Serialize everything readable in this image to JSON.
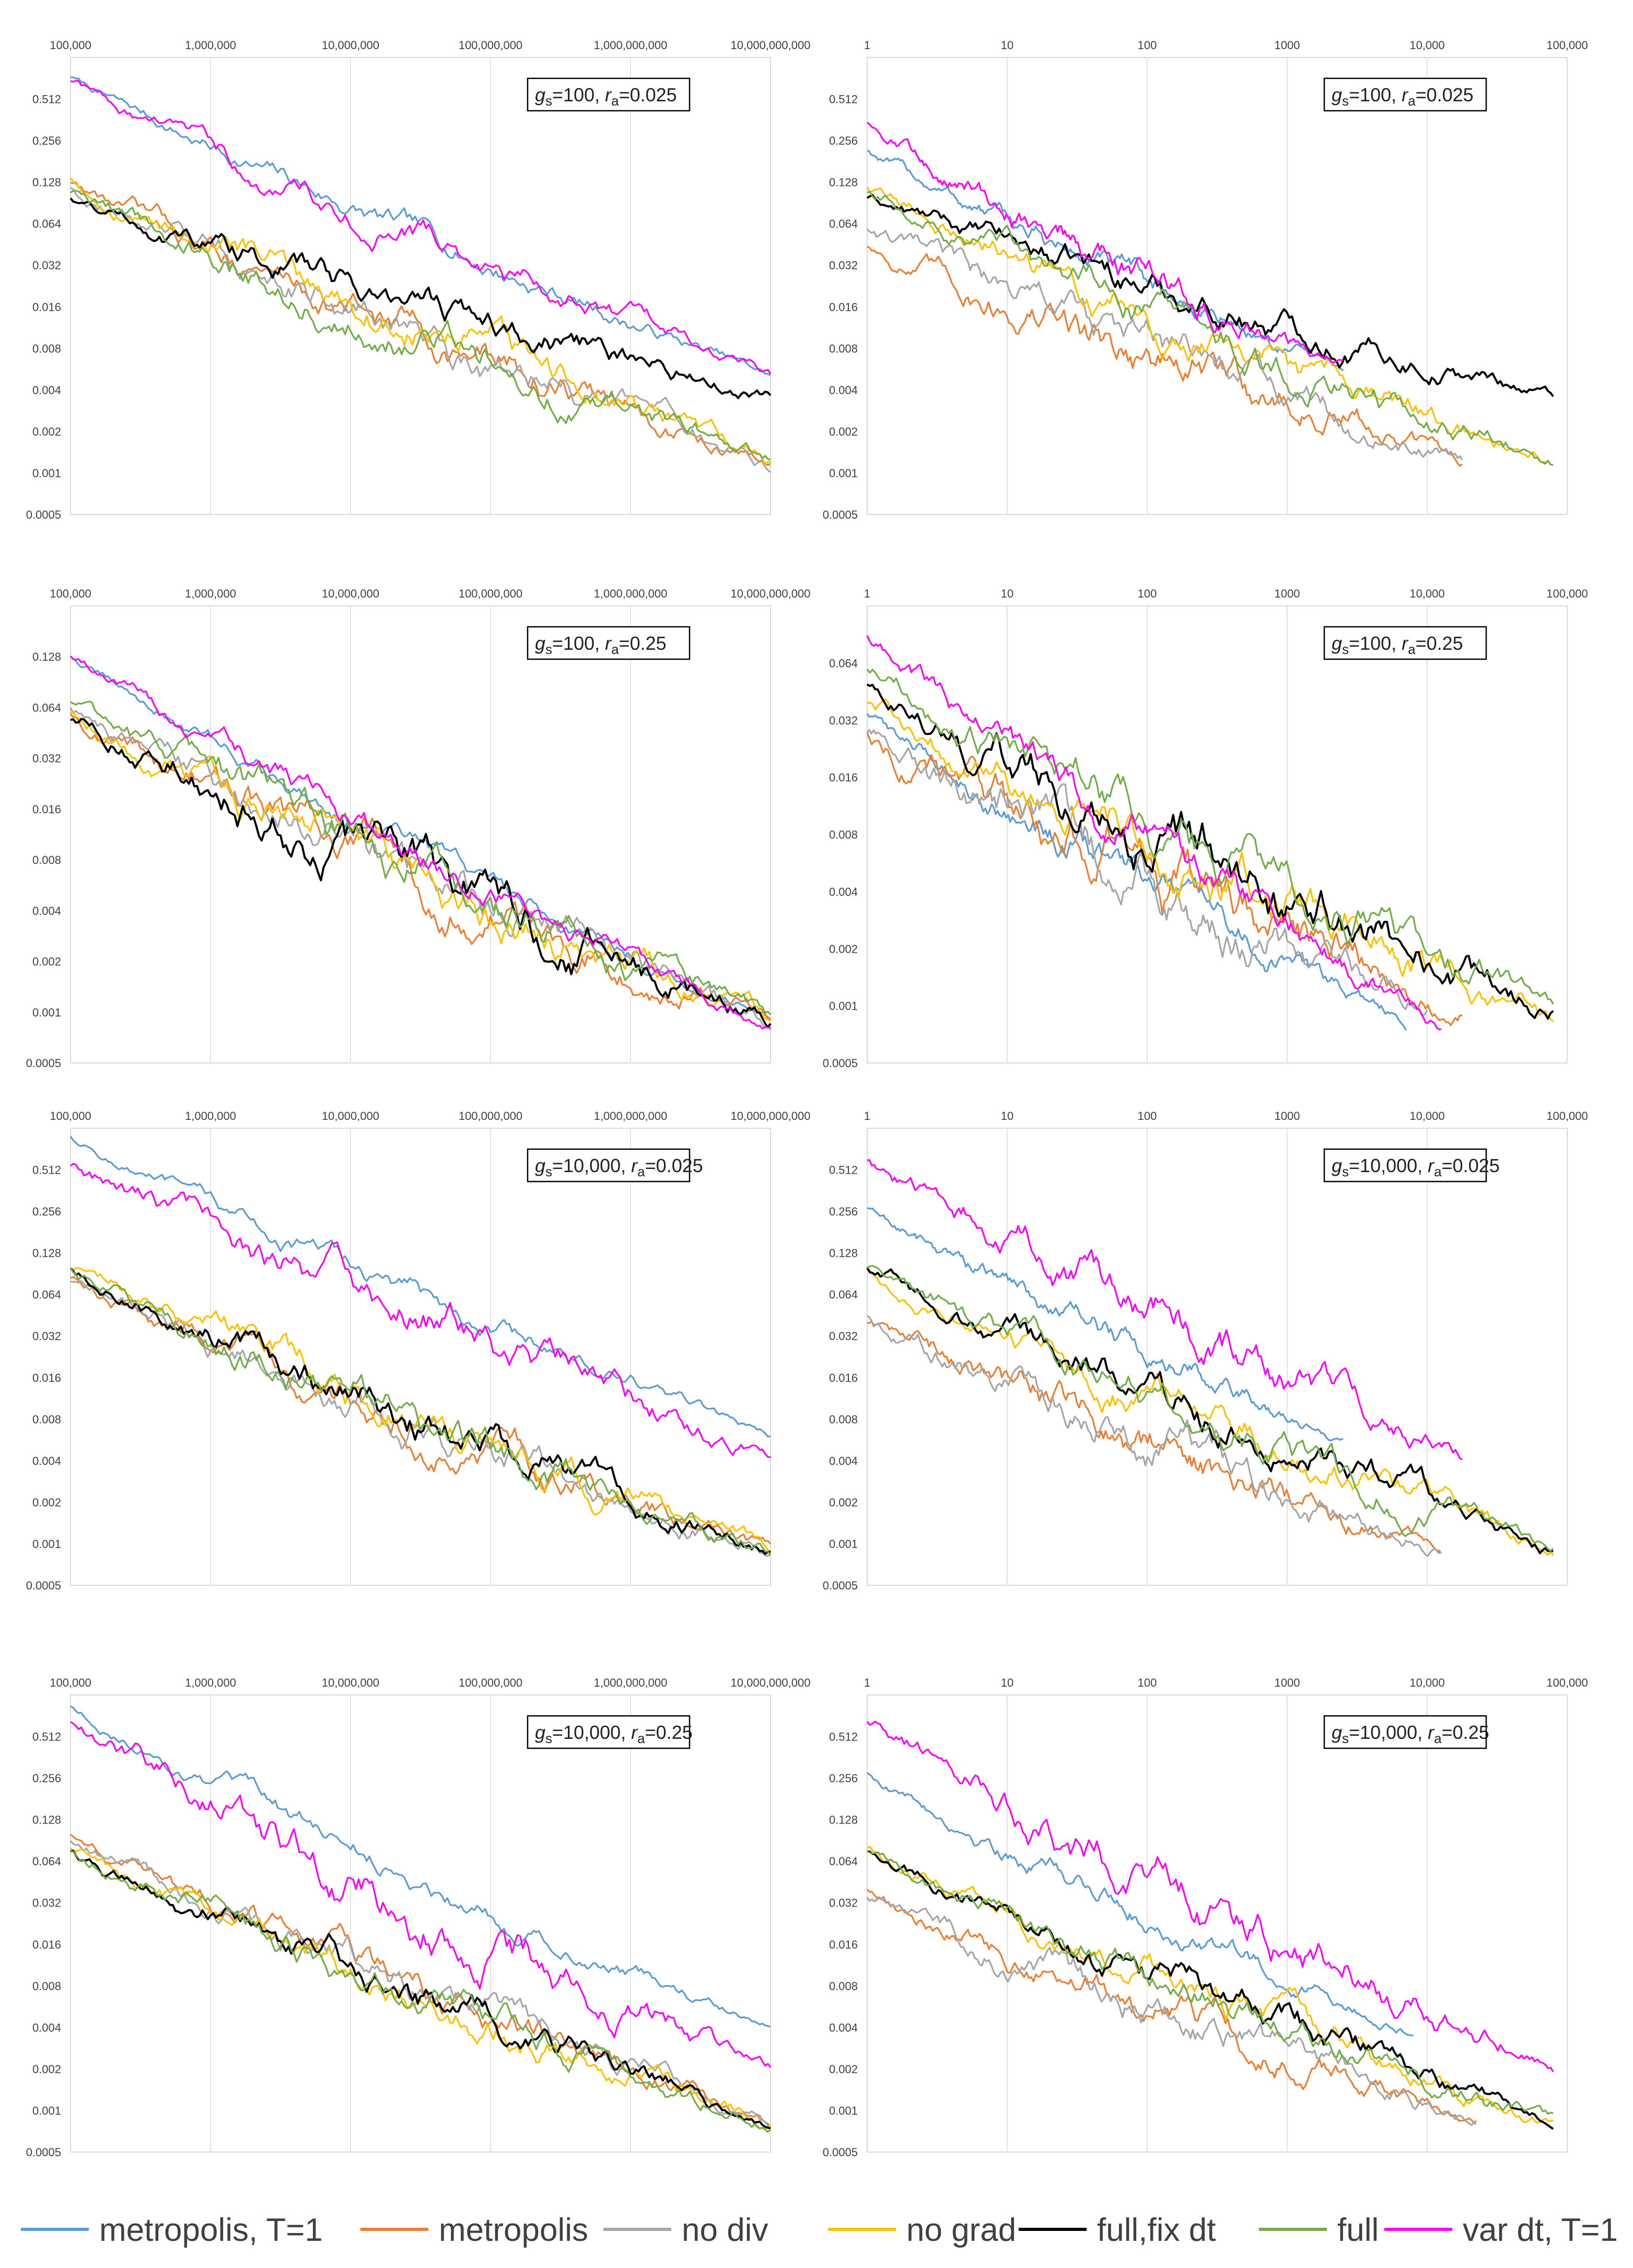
{
  "chart_data": [
    {
      "type": "line",
      "id": "p1",
      "label": {
        "g": "100",
        "r": "0.025"
      },
      "x_scale": "log",
      "x_ticks": [
        "100,000",
        "1,000,000",
        "10,000,000",
        "100,000,000",
        "1,000,000,000",
        "10,000,000,000"
      ],
      "y_scale": "log2",
      "y_ticks": [
        "0.512",
        "0.256",
        "0.128",
        "0.064",
        "0.032",
        "0.016",
        "0.008",
        "0.004",
        "0.002",
        "0.001",
        "0.0005"
      ],
      "ylim": [
        0.0005,
        1.024
      ],
      "series": [
        {
          "name": "metropolis, T=1",
          "start": 0.75,
          "end": 0.005,
          "span": 1.0,
          "noise": 0.05
        },
        {
          "name": "metropolis",
          "start": 0.13,
          "end": 0.00115,
          "span": 1.0,
          "noise": 0.08
        },
        {
          "name": "no div",
          "start": 0.12,
          "end": 0.0011,
          "span": 1.0,
          "noise": 0.08
        },
        {
          "name": "no grad",
          "start": 0.14,
          "end": 0.0012,
          "span": 1.0,
          "noise": 0.08
        },
        {
          "name": "full,fix dt",
          "start": 0.1,
          "end": 0.0037,
          "span": 1.0,
          "noise": 0.07,
          "floor": 0.004
        },
        {
          "name": "full",
          "start": 0.11,
          "end": 0.00125,
          "span": 1.0,
          "noise": 0.08
        },
        {
          "name": "var dt, T=1",
          "start": 0.7,
          "end": 0.005,
          "span": 1.0,
          "noise": 0.06
        }
      ]
    },
    {
      "type": "line",
      "id": "p2",
      "label": {
        "g": "100",
        "r": "0.025"
      },
      "x_scale": "log",
      "x_ticks": [
        "1",
        "10",
        "100",
        "1000",
        "10,000",
        "100,000"
      ],
      "y_scale": "log2",
      "y_ticks": [
        "0.512",
        "0.256",
        "0.128",
        "0.064",
        "0.032",
        "0.016",
        "0.008",
        "0.004",
        "0.002",
        "0.001",
        "0.0005"
      ],
      "ylim": [
        0.0005,
        1.024
      ],
      "series": [
        {
          "name": "metropolis, T=1",
          "start": 0.22,
          "end": 0.0055,
          "span": 0.68,
          "noise": 0.05
        },
        {
          "name": "metropolis",
          "start": 0.045,
          "end": 0.0012,
          "span": 0.85,
          "noise": 0.09
        },
        {
          "name": "no div",
          "start": 0.06,
          "end": 0.0012,
          "span": 0.85,
          "noise": 0.08
        },
        {
          "name": "no grad",
          "start": 0.12,
          "end": 0.0012,
          "span": 0.97,
          "noise": 0.08
        },
        {
          "name": "full,fix dt",
          "start": 0.1,
          "end": 0.0037,
          "span": 0.98,
          "noise": 0.07,
          "floor": 0.004
        },
        {
          "name": "full",
          "start": 0.11,
          "end": 0.00125,
          "span": 0.98,
          "noise": 0.08
        },
        {
          "name": "var dt, T=1",
          "start": 0.35,
          "end": 0.0055,
          "span": 0.68,
          "noise": 0.06
        }
      ]
    },
    {
      "type": "line",
      "id": "p3",
      "label": {
        "g": "100",
        "r": "0.25"
      },
      "x_scale": "log",
      "x_ticks": [
        "100,000",
        "1,000,000",
        "10,000,000",
        "100,000,000",
        "1,000,000,000",
        "10,000,000,000"
      ],
      "y_scale": "log2",
      "y_ticks": [
        "0.128",
        "0.064",
        "0.032",
        "0.016",
        "0.008",
        "0.004",
        "0.002",
        "0.001",
        "0.0005"
      ],
      "ylim": [
        0.0005,
        0.256
      ],
      "series": [
        {
          "name": "metropolis, T=1",
          "start": 0.13,
          "end": 0.0009,
          "span": 1.0,
          "noise": 0.04
        },
        {
          "name": "metropolis",
          "start": 0.06,
          "end": 0.00095,
          "span": 1.0,
          "noise": 0.08
        },
        {
          "name": "no div",
          "start": 0.065,
          "end": 0.0009,
          "span": 1.0,
          "noise": 0.08
        },
        {
          "name": "no grad",
          "start": 0.06,
          "end": 0.0009,
          "span": 1.0,
          "noise": 0.08
        },
        {
          "name": "full,fix dt",
          "start": 0.055,
          "end": 0.0009,
          "span": 1.0,
          "noise": 0.09
        },
        {
          "name": "full",
          "start": 0.07,
          "end": 0.0009,
          "span": 1.0,
          "noise": 0.08
        },
        {
          "name": "var dt, T=1",
          "start": 0.13,
          "end": 0.0008,
          "span": 1.0,
          "noise": 0.05
        }
      ]
    },
    {
      "type": "line",
      "id": "p4",
      "label": {
        "g": "100",
        "r": "0.25"
      },
      "x_scale": "log",
      "x_ticks": [
        "1",
        "10",
        "100",
        "1000",
        "10,000",
        "100,000"
      ],
      "y_scale": "log2",
      "y_ticks": [
        "0.064",
        "0.032",
        "0.016",
        "0.008",
        "0.004",
        "0.002",
        "0.001",
        "0.0005"
      ],
      "ylim": [
        0.0005,
        0.128
      ],
      "series": [
        {
          "name": "metropolis, T=1",
          "start": 0.035,
          "end": 0.0008,
          "span": 0.77,
          "noise": 0.05
        },
        {
          "name": "metropolis",
          "start": 0.028,
          "end": 0.001,
          "span": 0.85,
          "noise": 0.09
        },
        {
          "name": "no div",
          "start": 0.028,
          "end": 0.001,
          "span": 0.8,
          "noise": 0.08
        },
        {
          "name": "no grad",
          "start": 0.04,
          "end": 0.00085,
          "span": 0.98,
          "noise": 0.08
        },
        {
          "name": "full,fix dt",
          "start": 0.05,
          "end": 0.00095,
          "span": 0.98,
          "noise": 0.09
        },
        {
          "name": "full",
          "start": 0.06,
          "end": 0.00095,
          "span": 0.98,
          "noise": 0.08
        },
        {
          "name": "var dt, T=1",
          "start": 0.09,
          "end": 0.0008,
          "span": 0.82,
          "noise": 0.06
        }
      ]
    },
    {
      "type": "line",
      "id": "p5",
      "label": {
        "g": "10,000",
        "r": "0.025"
      },
      "x_scale": "log",
      "x_ticks": [
        "100,000",
        "1,000,000",
        "10,000,000",
        "100,000,000",
        "1,000,000,000",
        "10,000,000,000"
      ],
      "y_scale": "log2",
      "y_ticks": [
        "0.512",
        "0.256",
        "0.128",
        "0.064",
        "0.032",
        "0.016",
        "0.008",
        "0.004",
        "0.002",
        "0.001",
        "0.0005"
      ],
      "ylim": [
        0.0005,
        1.024
      ],
      "series": [
        {
          "name": "metropolis, T=1",
          "start": 0.9,
          "end": 0.0058,
          "span": 1.0,
          "noise": 0.05
        },
        {
          "name": "metropolis",
          "start": 0.085,
          "end": 0.0009,
          "span": 1.0,
          "noise": 0.08
        },
        {
          "name": "no div",
          "start": 0.08,
          "end": 0.0009,
          "span": 1.0,
          "noise": 0.08
        },
        {
          "name": "no grad",
          "start": 0.1,
          "end": 0.0009,
          "span": 1.0,
          "noise": 0.08
        },
        {
          "name": "full,fix dt",
          "start": 0.1,
          "end": 0.0009,
          "span": 1.0,
          "noise": 0.08
        },
        {
          "name": "full",
          "start": 0.1,
          "end": 0.0009,
          "span": 1.0,
          "noise": 0.08
        },
        {
          "name": "var dt, T=1",
          "start": 0.55,
          "end": 0.0045,
          "span": 1.0,
          "noise": 0.09
        }
      ]
    },
    {
      "type": "line",
      "id": "p6",
      "label": {
        "g": "10,000",
        "r": "0.025"
      },
      "x_scale": "log",
      "x_ticks": [
        "1",
        "10",
        "100",
        "1000",
        "10,000",
        "100,000"
      ],
      "y_scale": "log2",
      "y_ticks": [
        "0.512",
        "0.256",
        "0.128",
        "0.064",
        "0.032",
        "0.016",
        "0.008",
        "0.004",
        "0.002",
        "0.001",
        "0.0005"
      ],
      "ylim": [
        0.0005,
        1.024
      ],
      "series": [
        {
          "name": "metropolis, T=1",
          "start": 0.27,
          "end": 0.0055,
          "span": 0.68,
          "noise": 0.05
        },
        {
          "name": "metropolis",
          "start": 0.04,
          "end": 0.0009,
          "span": 0.82,
          "noise": 0.08
        },
        {
          "name": "no div",
          "start": 0.045,
          "end": 0.0009,
          "span": 0.82,
          "noise": 0.08
        },
        {
          "name": "no grad",
          "start": 0.1,
          "end": 0.0009,
          "span": 0.98,
          "noise": 0.08
        },
        {
          "name": "full,fix dt",
          "start": 0.1,
          "end": 0.0009,
          "span": 0.98,
          "noise": 0.08
        },
        {
          "name": "full",
          "start": 0.1,
          "end": 0.0009,
          "span": 0.98,
          "noise": 0.08
        },
        {
          "name": "var dt, T=1",
          "start": 0.6,
          "end": 0.0045,
          "span": 0.85,
          "noise": 0.09
        }
      ]
    },
    {
      "type": "line",
      "id": "p7",
      "label": {
        "g": "10,000",
        "r": "0.25"
      },
      "x_scale": "log",
      "x_ticks": [
        "100,000",
        "1,000,000",
        "10,000,000",
        "100,000,000",
        "1,000,000,000",
        "10,000,000,000"
      ],
      "y_scale": "log2",
      "y_ticks": [
        "0.512",
        "0.256",
        "0.128",
        "0.064",
        "0.032",
        "0.016",
        "0.008",
        "0.004",
        "0.002",
        "0.001",
        "0.0005"
      ],
      "ylim": [
        0.0005,
        1.024
      ],
      "series": [
        {
          "name": "metropolis, T=1",
          "start": 0.85,
          "end": 0.0038,
          "span": 1.0,
          "noise": 0.05
        },
        {
          "name": "metropolis",
          "start": 0.1,
          "end": 0.0008,
          "span": 1.0,
          "noise": 0.07
        },
        {
          "name": "no div",
          "start": 0.09,
          "end": 0.0008,
          "span": 1.0,
          "noise": 0.07
        },
        {
          "name": "no grad",
          "start": 0.08,
          "end": 0.0008,
          "span": 1.0,
          "noise": 0.07
        },
        {
          "name": "full,fix dt",
          "start": 0.075,
          "end": 0.0008,
          "span": 1.0,
          "noise": 0.07
        },
        {
          "name": "full",
          "start": 0.075,
          "end": 0.0008,
          "span": 1.0,
          "noise": 0.07
        },
        {
          "name": "var dt, T=1",
          "start": 0.65,
          "end": 0.002,
          "span": 1.0,
          "noise": 0.1
        }
      ]
    },
    {
      "type": "line",
      "id": "p8",
      "label": {
        "g": "10,000",
        "r": "0.25"
      },
      "x_scale": "log",
      "x_ticks": [
        "1",
        "10",
        "100",
        "1000",
        "10,000",
        "100,000"
      ],
      "y_scale": "log2",
      "y_ticks": [
        "0.512",
        "0.256",
        "0.128",
        "0.064",
        "0.032",
        "0.016",
        "0.008",
        "0.004",
        "0.002",
        "0.001",
        "0.0005"
      ],
      "ylim": [
        0.0005,
        1.024
      ],
      "series": [
        {
          "name": "metropolis, T=1",
          "start": 0.28,
          "end": 0.0038,
          "span": 0.78,
          "noise": 0.05
        },
        {
          "name": "metropolis",
          "start": 0.04,
          "end": 0.0008,
          "span": 0.87,
          "noise": 0.07
        },
        {
          "name": "no div",
          "start": 0.035,
          "end": 0.0008,
          "span": 0.87,
          "noise": 0.07
        },
        {
          "name": "no grad",
          "start": 0.08,
          "end": 0.0008,
          "span": 0.98,
          "noise": 0.07
        },
        {
          "name": "full,fix dt",
          "start": 0.075,
          "end": 0.0008,
          "span": 0.98,
          "noise": 0.07
        },
        {
          "name": "full",
          "start": 0.075,
          "end": 0.0008,
          "span": 0.98,
          "noise": 0.07
        },
        {
          "name": "var dt, T=1",
          "start": 0.65,
          "end": 0.002,
          "span": 0.98,
          "noise": 0.1
        }
      ]
    }
  ],
  "legend": [
    {
      "name": "metropolis, T=1",
      "color": "#5b9bd5"
    },
    {
      "name": "metropolis",
      "color": "#ed7d31"
    },
    {
      "name": "no div",
      "color": "#a5a5a5"
    },
    {
      "name": "no grad",
      "color": "#ffc000"
    },
    {
      "name": "full,fix dt",
      "color": "#000000"
    },
    {
      "name": "full",
      "color": "#70ad47"
    },
    {
      "name": "var dt, T=1",
      "color": "#ff00ff"
    }
  ]
}
